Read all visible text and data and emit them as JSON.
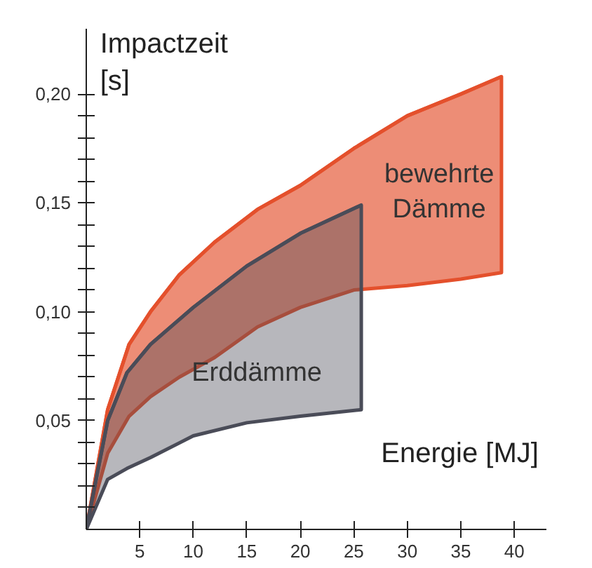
{
  "chart_data": {
    "type": "line",
    "xlabel": "Energie  [MJ]",
    "ylabel": "Impactzeit\n[s]",
    "series": [
      {
        "color": "#e4502c",
        "x": [
          0,
          2,
          4,
          6,
          8.7,
          12,
          16,
          20,
          25,
          30,
          35,
          38.8
        ],
        "values": [
          0,
          0.055,
          0.085,
          0.1,
          0.117,
          0.132,
          0.147,
          0.158,
          0.175,
          0.19,
          0.2,
          0.208
        ],
        "upper": [
          0,
          0.055,
          0.085,
          0.1,
          0.117,
          0.132,
          0.147,
          0.158,
          0.175,
          0.19,
          0.2,
          0.208
        ],
        "lower": [
          0,
          0.035,
          0.052,
          0.061,
          0.07,
          0.079,
          0.093,
          0.102,
          0.11,
          0.112,
          0.115,
          0.118
        ]
      },
      {
        "color": "#4a4c58",
        "x": [
          0,
          2,
          3.8,
          6,
          10,
          15,
          20,
          25.7
        ],
        "values": [
          0,
          0.05,
          0.072,
          0.085,
          0.102,
          0.121,
          0.136,
          0.149
        ],
        "upper": [
          0,
          0.05,
          0.072,
          0.085,
          0.102,
          0.121,
          0.136,
          0.149
        ],
        "lower": [
          0,
          0.023,
          0.028,
          0.033,
          0.043,
          0.049,
          0.052,
          0.055
        ]
      }
    ],
    "xlim": [
      0,
      43
    ],
    "ylim": [
      0,
      0.23
    ],
    "xticks": [
      5,
      10,
      15,
      20,
      25,
      30,
      35,
      40
    ],
    "yticks": [
      {
        "value": 0.01,
        "label": null
      },
      {
        "value": 0.02,
        "label": null
      },
      {
        "value": 0.03,
        "label": null
      },
      {
        "value": 0.04,
        "label": null
      },
      {
        "value": 0.05,
        "label": "0,05"
      },
      {
        "value": 0.06,
        "label": null
      },
      {
        "value": 0.07,
        "label": null
      },
      {
        "value": 0.08,
        "label": null
      },
      {
        "value": 0.09,
        "label": null
      },
      {
        "value": 0.1,
        "label": "0,10"
      },
      {
        "value": 0.11,
        "label": null
      },
      {
        "value": 0.12,
        "label": null
      },
      {
        "value": 0.13,
        "label": null
      },
      {
        "value": 0.14,
        "label": null
      },
      {
        "value": 0.15,
        "label": "0,15"
      },
      {
        "value": 0.16,
        "label": null
      },
      {
        "value": 0.17,
        "label": null
      },
      {
        "value": 0.18,
        "label": null
      },
      {
        "value": 0.19,
        "label": null
      },
      {
        "value": 0.2,
        "label": "0,20"
      }
    ],
    "annotations": [
      "bewehrte\nDämme",
      "Erddämme"
    ],
    "grid": false
  }
}
